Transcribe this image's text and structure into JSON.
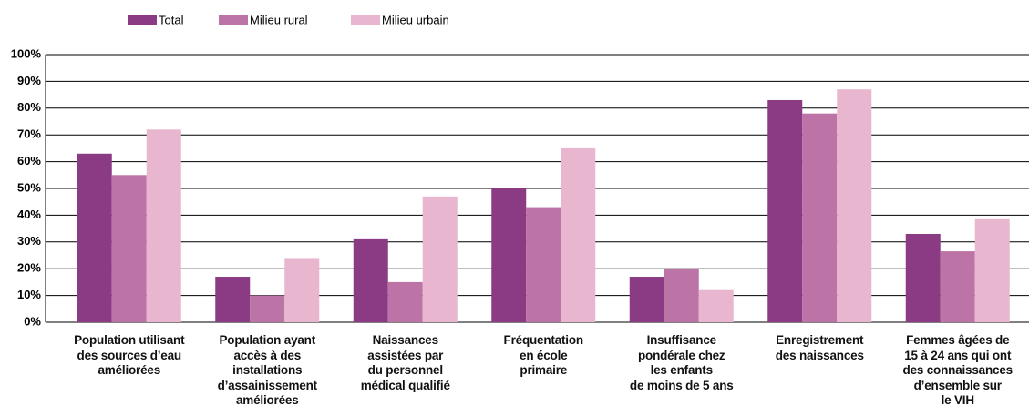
{
  "chart_data": {
    "type": "bar",
    "categories": [
      "Population utilisant\ndes sources d’eau\naméliorées",
      "Population ayant\naccès à des\ninstallations\nd’assainissement\naméliorées",
      "Naissances\nassistées par\ndu personnel\nmédical qualifié",
      "Fréquentation\nen école\nprimaire",
      "Insuffisance\npondérale chez\nles enfants\nde moins de 5 ans",
      "Enregistrement\ndes naissances",
      "Femmes âgées de\n15 à 24 ans qui ont\ndes connaissances\nd’ensemble sur\nle VIH"
    ],
    "series": [
      {
        "name": "Total",
        "color": "#8b3a84",
        "values": [
          63,
          17,
          31,
          50,
          17,
          83,
          33
        ]
      },
      {
        "name": "Milieu rural",
        "color": "#bc73a6",
        "values": [
          55,
          10,
          15,
          43,
          20,
          78,
          26.5
        ]
      },
      {
        "name": "Milieu urbain",
        "color": "#e8b7cf",
        "values": [
          72,
          24,
          47,
          65,
          12,
          87,
          38.5
        ]
      }
    ],
    "ylim": [
      0,
      100
    ],
    "yticks": [
      {
        "value": 0,
        "label": "0%"
      },
      {
        "value": 10,
        "label": "10%"
      },
      {
        "value": 20,
        "label": "20%"
      },
      {
        "value": 30,
        "label": "30%"
      },
      {
        "value": 40,
        "label": "40%"
      },
      {
        "value": 50,
        "label": "50%"
      },
      {
        "value": 60,
        "label": "60%"
      },
      {
        "value": 70,
        "label": "70%"
      },
      {
        "value": 80,
        "label": "80%"
      },
      {
        "value": 90,
        "label": "90%"
      },
      {
        "value": 100,
        "label": "100%"
      }
    ],
    "grid": true,
    "legend": "top"
  }
}
